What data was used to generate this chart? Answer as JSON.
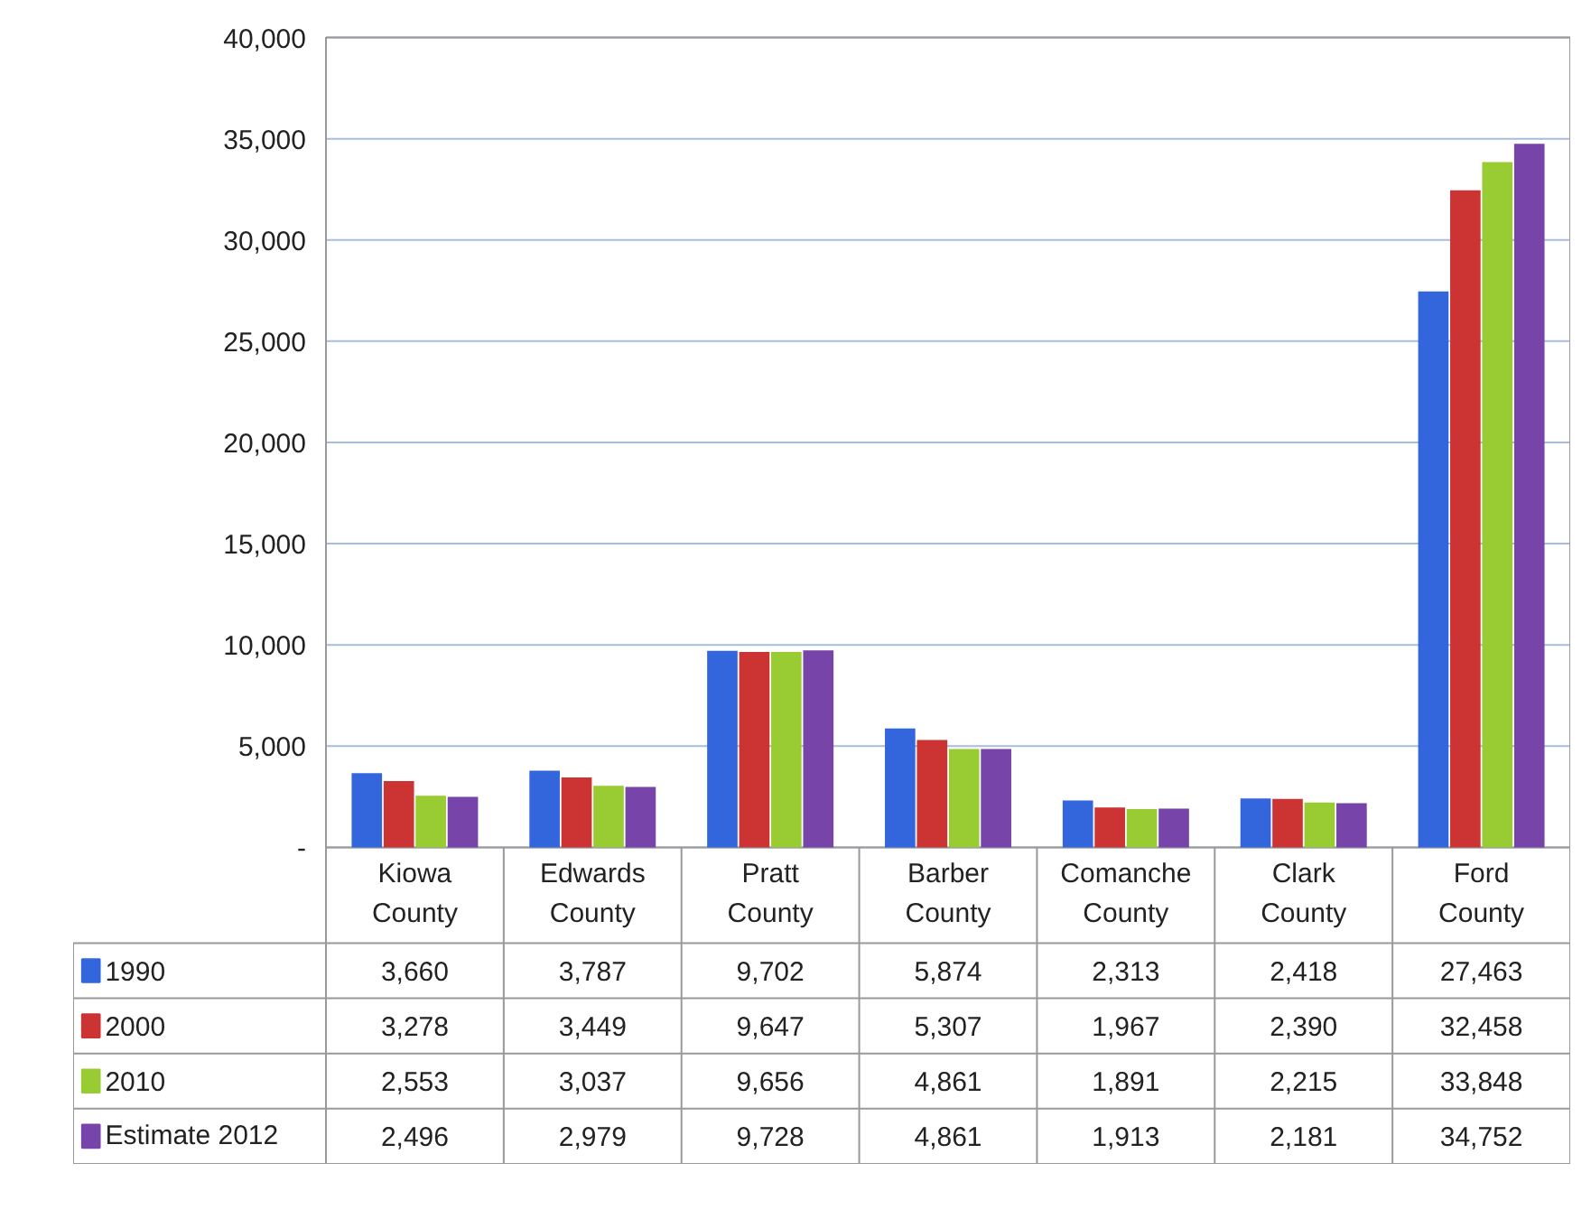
{
  "chart_data": {
    "type": "bar",
    "categories": [
      "Kiowa\nCounty",
      "Edwards\nCounty",
      "Pratt\nCounty",
      "Barber\nCounty",
      "Comanche\nCounty",
      "Clark\nCounty",
      "Ford\nCounty"
    ],
    "series": [
      {
        "name": "1990",
        "color": "#3366dd",
        "values": [
          3660,
          3787,
          9702,
          5874,
          2313,
          2418,
          27463
        ],
        "value_labels": [
          "3,660",
          "3,787",
          "9,702",
          "5,874",
          "2,313",
          "2,418",
          "27,463"
        ]
      },
      {
        "name": "2000",
        "color": "#cc3333",
        "values": [
          3278,
          3449,
          9647,
          5307,
          1967,
          2390,
          32458
        ],
        "value_labels": [
          "3,278",
          "3,449",
          "9,647",
          "5,307",
          "1,967",
          "2,390",
          "32,458"
        ]
      },
      {
        "name": "2010",
        "color": "#99cc33",
        "values": [
          2553,
          3037,
          9656,
          4861,
          1891,
          2215,
          33848
        ],
        "value_labels": [
          "2,553",
          "3,037",
          "9,656",
          "4,861",
          "1,891",
          "2,215",
          "33,848"
        ]
      },
      {
        "name": "Estimate 2012",
        "color": "#7744aa",
        "values": [
          2496,
          2979,
          9728,
          4861,
          1913,
          2181,
          34752
        ],
        "value_labels": [
          "2,496",
          "2,979",
          "9,728",
          "4,861",
          "1,913",
          "2,181",
          "34,752"
        ]
      }
    ],
    "ylim": [
      0,
      40000
    ],
    "yticks": [
      {
        "value": 0,
        "label": "-"
      },
      {
        "value": 5000,
        "label": "5,000"
      },
      {
        "value": 10000,
        "label": "10,000"
      },
      {
        "value": 15000,
        "label": "15,000"
      },
      {
        "value": 20000,
        "label": "20,000"
      },
      {
        "value": 25000,
        "label": "25,000"
      },
      {
        "value": 30000,
        "label": "30,000"
      },
      {
        "value": 35000,
        "label": "35,000"
      },
      {
        "value": 40000,
        "label": "40,000"
      }
    ],
    "grid": "y",
    "legend": "bottom left"
  }
}
